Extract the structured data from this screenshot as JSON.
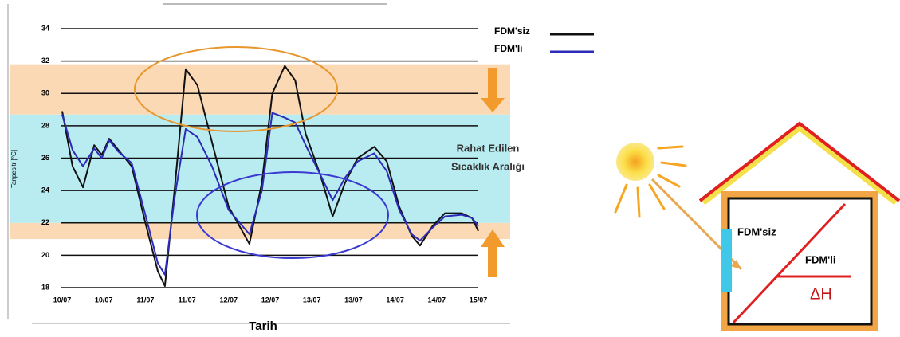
{
  "chart_data": {
    "type": "line",
    "xlabel": "Tarih",
    "ylabel": "Tanpesltr [°C]",
    "annotation": [
      "Rahat Edilen",
      "Sıcaklık Aralığı"
    ],
    "x": [
      0,
      0.25,
      0.5,
      0.77,
      0.95,
      1.13,
      1.35,
      1.67,
      2.0,
      2.3,
      2.47,
      2.7,
      2.97,
      3.25,
      3.6,
      4.0,
      4.5,
      4.8,
      5.05,
      5.35,
      5.6,
      5.85,
      6.2,
      6.5,
      6.8,
      7.1,
      7.5,
      7.8,
      8.1,
      8.4,
      8.6,
      8.9,
      9.2,
      9.6,
      9.85,
      10
    ],
    "series": [
      {
        "name": "FDM'siz",
        "color": "#111111",
        "values": [
          28.9,
          25.5,
          24.2,
          26.8,
          26.2,
          27.2,
          26.5,
          25.5,
          22,
          19,
          18.1,
          24,
          31.5,
          30.5,
          27,
          23,
          20.7,
          24.5,
          30,
          31.7,
          30.8,
          27.5,
          25,
          22.4,
          24.5,
          26,
          26.7,
          25.8,
          23,
          21.2,
          20.6,
          21.8,
          22.6,
          22.6,
          22.3,
          21.5
        ]
      },
      {
        "name": "FDM'li",
        "color": "#2b2bb8",
        "values": [
          28.7,
          26.5,
          25.5,
          26.6,
          26.0,
          27.1,
          26.4,
          25.7,
          22.5,
          19.5,
          18.8,
          23.5,
          27.8,
          27.3,
          25.5,
          22.8,
          21.3,
          24,
          28.8,
          28.5,
          28.2,
          26.8,
          25,
          23.4,
          24.8,
          25.8,
          26.3,
          25.2,
          22.8,
          21.3,
          20.9,
          21.7,
          22.4,
          22.5,
          22.3,
          21.8
        ]
      }
    ],
    "bands": [
      {
        "from": 21,
        "to": 22,
        "color": "#fbd9b5"
      },
      {
        "from": 22,
        "to": 28.7,
        "color": "#b9ecf1"
      },
      {
        "from": 28.7,
        "to": 31.8,
        "color": "#fbd9b5"
      }
    ],
    "xlim": [
      0,
      10
    ],
    "xticks": [
      {
        "value": 0,
        "label": "10/07"
      },
      {
        "value": 1,
        "label": "10/07"
      },
      {
        "value": 2,
        "label": "11/07"
      },
      {
        "value": 3,
        "label": "11/07"
      },
      {
        "value": 4,
        "label": "12/07"
      },
      {
        "value": 5,
        "label": "12/07"
      },
      {
        "value": 6,
        "label": "13/07"
      },
      {
        "value": 7,
        "label": "13/07"
      },
      {
        "value": 8,
        "label": "14/07"
      },
      {
        "value": 9,
        "label": "14/07"
      },
      {
        "value": 10,
        "label": "15/07"
      }
    ],
    "ylim": [
      18,
      34
    ],
    "yticks": [
      18,
      20,
      22,
      24,
      26,
      28,
      30,
      32,
      34
    ],
    "grid": true
  },
  "diagram": {
    "labels": [
      "FDM'siz",
      "FDM'li",
      "ΔH"
    ]
  }
}
